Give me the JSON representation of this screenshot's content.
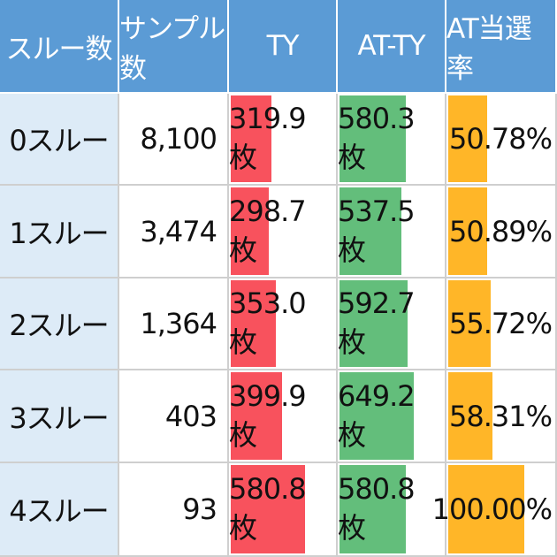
{
  "headers": [
    "スルー数",
    "サンプル数",
    "TY",
    "AT-TY",
    "AT当選率"
  ],
  "rows": [
    {
      "label": "0スルー",
      "samples": "8,100",
      "ty": "319.9枚",
      "at_ty": "580.3枚",
      "rate": "50.78%",
      "ty_val": 319.9,
      "at_ty_val": 580.3,
      "rate_val": 50.78
    },
    {
      "label": "1スルー",
      "samples": "3,474",
      "ty": "298.7枚",
      "at_ty": "537.5枚",
      "rate": "50.89%",
      "ty_val": 298.7,
      "at_ty_val": 537.5,
      "rate_val": 50.89
    },
    {
      "label": "2スルー",
      "samples": "1,364",
      "ty": "353.0枚",
      "at_ty": "592.7枚",
      "rate": "55.72%",
      "ty_val": 353.0,
      "at_ty_val": 592.7,
      "rate_val": 55.72
    },
    {
      "label": "3スルー",
      "samples": "403",
      "ty": "399.9枚",
      "at_ty": "649.2枚",
      "rate": "58.31%",
      "ty_val": 399.9,
      "at_ty_val": 649.2,
      "rate_val": 58.31
    },
    {
      "label": "4スルー",
      "samples": "93",
      "ty": "580.8枚",
      "at_ty": "580.8枚",
      "rate": "100.00%",
      "ty_val": 580.8,
      "at_ty_val": 580.8,
      "rate_val": 100.0
    }
  ],
  "colors": {
    "header": "#5b9bd5",
    "label_bg": "#ddebf7",
    "ty_bar": "#f8525d",
    "at_ty_bar": "#63be7b",
    "rate_bar": "#ffb628"
  }
}
